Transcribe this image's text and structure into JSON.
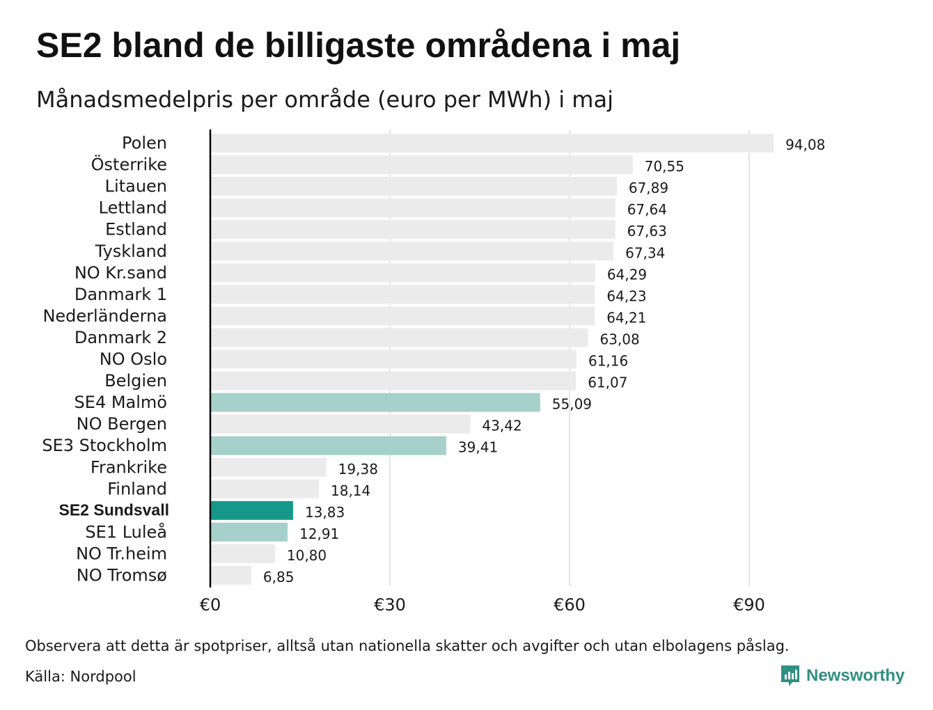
{
  "title": "SE2 bland de billigaste områdena i maj",
  "subtitle": "Månadsmedelpris per område (euro per MWh) i maj",
  "note": "Observera att detta är spotpriser, alltså utan nationella skatter och avgifter och utan elbolagens påslag.",
  "source": "Källa: Nordpool",
  "brand": "Newsworthy",
  "colors": {
    "other": "#ebebeb",
    "se_other": "#a6d0ca",
    "highlight": "#15988a",
    "grid": "#c8c8d0",
    "axis": "#000000",
    "brand": "#2f8f82"
  },
  "chart_data": {
    "type": "bar",
    "orientation": "horizontal",
    "title": "SE2 bland de billigaste områdena i maj",
    "subtitle": "Månadsmedelpris per område (euro per MWh) i maj",
    "xlim": [
      0,
      100
    ],
    "ticks": [
      0,
      30,
      60,
      90
    ],
    "tick_labels": [
      "€0",
      "€30",
      "€60",
      "€90"
    ],
    "grid": true,
    "categories": [
      "Polen",
      "Österrike",
      "Litauen",
      "Lettland",
      "Estland",
      "Tyskland",
      "NO Kr.sand",
      "Danmark  1",
      "Nederländerna",
      "Danmark  2",
      "NO Oslo",
      "Belgien",
      "SE4  Malmö",
      "NO Bergen",
      "SE3  Stockholm",
      "Frankrike",
      "Finland",
      "SE2 Sundsvall",
      "SE1  Luleå",
      "NO Tr.heim",
      "NO Tromsø"
    ],
    "values": [
      94.08,
      70.55,
      67.89,
      67.64,
      67.63,
      67.34,
      64.29,
      64.23,
      64.21,
      63.08,
      61.16,
      61.07,
      55.09,
      43.42,
      39.41,
      19.38,
      18.14,
      13.83,
      12.91,
      10.8,
      6.85
    ],
    "value_labels": [
      "94,08",
      "70,55",
      "67,89",
      "67,64",
      "67,63",
      "67,34",
      "64,29",
      "64,23",
      "64,21",
      "63,08",
      "61,16",
      "61,07",
      "55,09",
      "43,42",
      "39,41",
      "19,38",
      "18,14",
      "13,83",
      "12,91",
      "10,80",
      "6,85"
    ],
    "groups": [
      "other",
      "other",
      "other",
      "other",
      "other",
      "other",
      "other",
      "other",
      "other",
      "other",
      "other",
      "other",
      "se_other",
      "other",
      "se_other",
      "other",
      "other",
      "highlight",
      "se_other",
      "other",
      "other"
    ],
    "emphasized": [
      "SE2 Sundsvall"
    ]
  }
}
